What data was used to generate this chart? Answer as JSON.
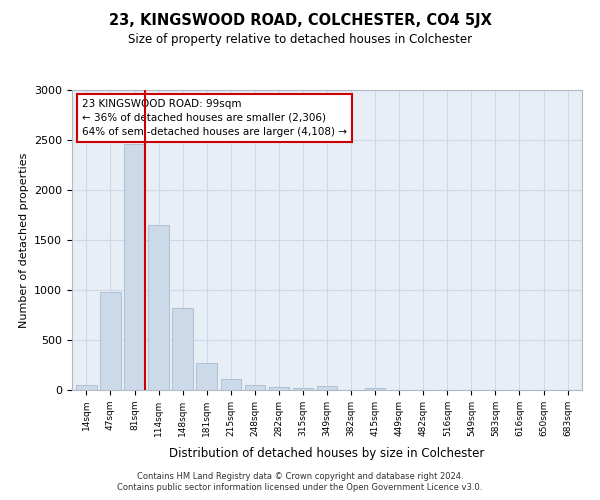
{
  "title": "23, KINGSWOOD ROAD, COLCHESTER, CO4 5JX",
  "subtitle": "Size of property relative to detached houses in Colchester",
  "xlabel": "Distribution of detached houses by size in Colchester",
  "ylabel": "Number of detached properties",
  "bar_color": "#ccd9e8",
  "bar_edge_color": "#aabbd0",
  "categories": [
    "14sqm",
    "47sqm",
    "81sqm",
    "114sqm",
    "148sqm",
    "181sqm",
    "215sqm",
    "248sqm",
    "282sqm",
    "315sqm",
    "349sqm",
    "382sqm",
    "415sqm",
    "449sqm",
    "482sqm",
    "516sqm",
    "549sqm",
    "583sqm",
    "616sqm",
    "650sqm",
    "683sqm"
  ],
  "values": [
    50,
    980,
    2460,
    1650,
    820,
    270,
    110,
    50,
    30,
    25,
    40,
    0,
    25,
    0,
    0,
    0,
    0,
    0,
    0,
    0,
    0
  ],
  "ylim": [
    0,
    3000
  ],
  "yticks": [
    0,
    500,
    1000,
    1500,
    2000,
    2500,
    3000
  ],
  "red_line_index": 2,
  "annotation_text": "23 KINGSWOOD ROAD: 99sqm\n← 36% of detached houses are smaller (2,306)\n64% of semi-detached houses are larger (4,108) →",
  "annotation_box_color": "#ffffff",
  "annotation_box_edge": "#cc0000",
  "footer_text": "Contains HM Land Registry data © Crown copyright and database right 2024.\nContains public sector information licensed under the Open Government Licence v3.0.",
  "grid_color": "#cdd8e8",
  "bg_color": "#e8eef5",
  "fig_bg_color": "#ffffff"
}
